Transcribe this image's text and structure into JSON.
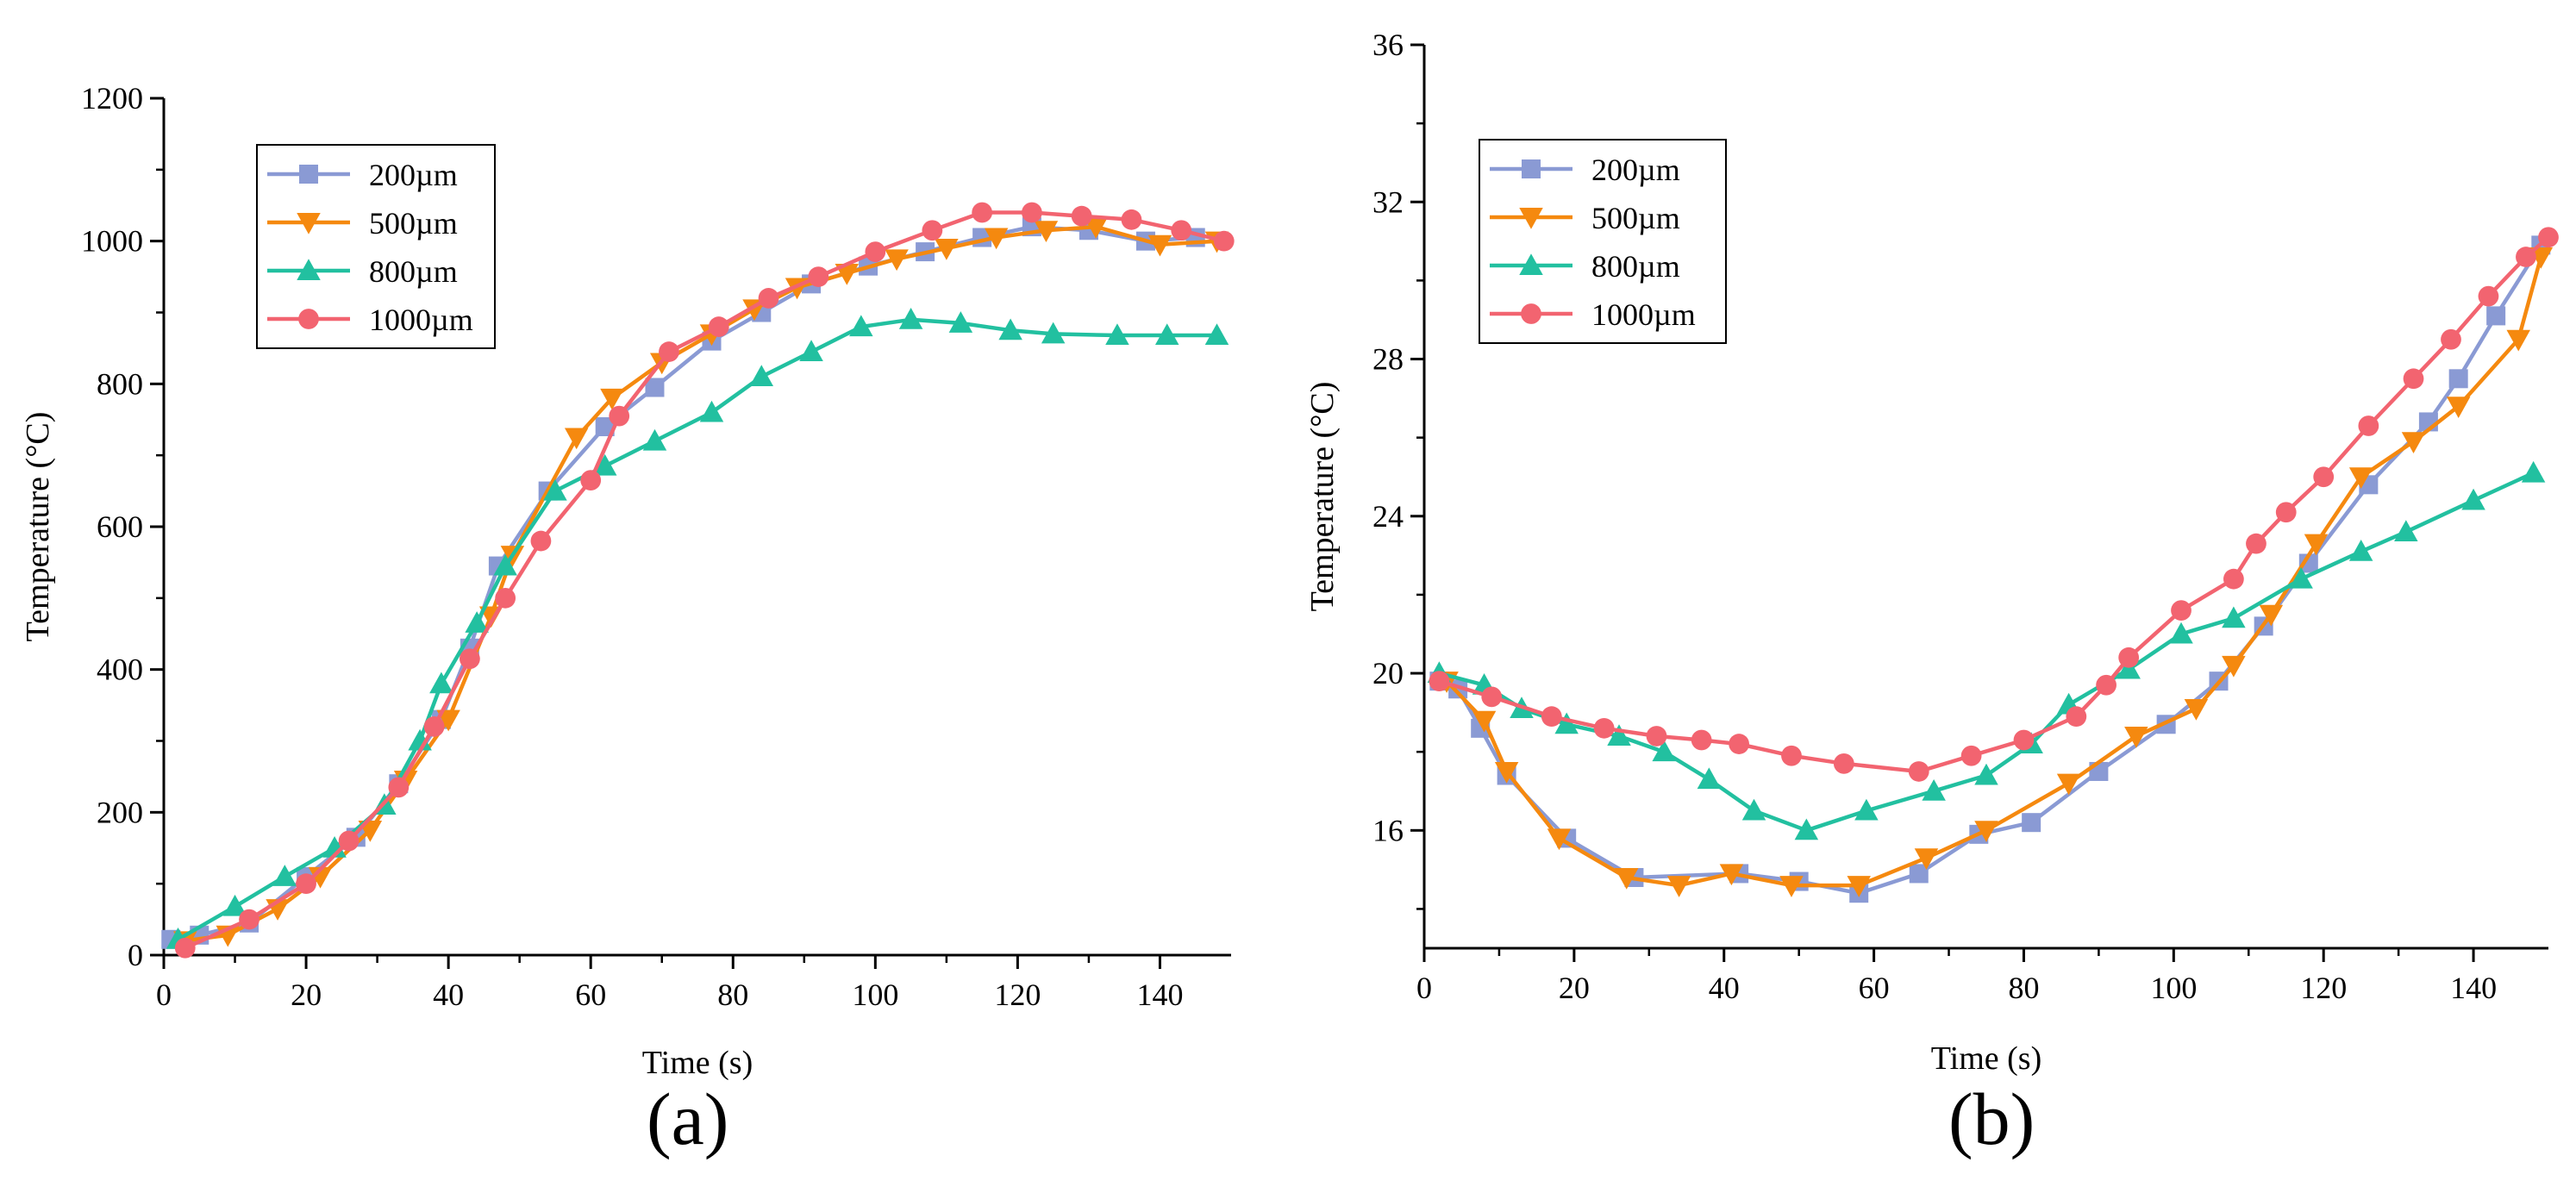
{
  "chart_data": [
    {
      "type": "line",
      "panel": "(a)",
      "title": "",
      "xlabel": "Time (s)",
      "ylabel": "Temperature (°C)",
      "xlim": [
        0,
        150
      ],
      "ylim": [
        0,
        1200
      ],
      "xticks": [
        0,
        20,
        40,
        60,
        80,
        100,
        120,
        140
      ],
      "yticks": [
        0,
        200,
        400,
        600,
        800,
        1000,
        1200
      ],
      "legend_position": "top-left",
      "series": [
        {
          "name": "200µm",
          "color": "#8a9ad4",
          "marker": "square",
          "x": [
            1,
            5,
            12,
            20,
            27,
            33,
            39,
            43,
            47,
            54,
            62,
            69,
            77,
            84,
            91,
            99,
            107,
            115,
            122,
            130,
            138,
            145
          ],
          "y": [
            22,
            28,
            45,
            110,
            165,
            240,
            330,
            430,
            545,
            650,
            740,
            795,
            860,
            900,
            940,
            965,
            985,
            1005,
            1020,
            1015,
            1000,
            1005
          ]
        },
        {
          "name": "500µm",
          "color": "#f5890f",
          "marker": "triangle-down",
          "x": [
            3,
            9,
            16,
            22,
            29,
            34,
            40,
            46,
            49,
            58,
            63,
            70,
            77,
            83,
            89,
            96,
            103,
            110,
            117,
            124,
            131,
            140,
            148
          ],
          "y": [
            20,
            28,
            65,
            110,
            175,
            245,
            330,
            475,
            560,
            725,
            780,
            830,
            870,
            905,
            935,
            955,
            975,
            990,
            1005,
            1015,
            1020,
            995,
            1000
          ]
        },
        {
          "name": "800µm",
          "color": "#22c0a0",
          "marker": "triangle-up",
          "x": [
            2,
            10,
            17,
            24,
            31,
            36,
            39,
            44,
            48,
            55,
            62,
            69,
            77,
            84,
            91,
            98,
            105,
            112,
            119,
            125,
            134,
            141,
            148
          ],
          "y": [
            22,
            68,
            110,
            150,
            210,
            300,
            380,
            465,
            545,
            650,
            685,
            720,
            760,
            810,
            845,
            880,
            890,
            885,
            875,
            870,
            868,
            868,
            868
          ]
        },
        {
          "name": "1000µm",
          "color": "#f26470",
          "marker": "circle",
          "x": [
            3,
            12,
            20,
            26,
            33,
            38,
            43,
            48,
            53,
            60,
            64,
            71,
            78,
            85,
            92,
            100,
            108,
            115,
            122,
            129,
            136,
            143,
            149
          ],
          "y": [
            10,
            50,
            100,
            160,
            235,
            320,
            415,
            500,
            580,
            665,
            755,
            845,
            880,
            920,
            950,
            985,
            1015,
            1040,
            1040,
            1035,
            1030,
            1015,
            1000
          ]
        }
      ]
    },
    {
      "type": "line",
      "panel": "(b)",
      "title": "",
      "xlabel": "Time (s)",
      "ylabel": "Temperature (°C)",
      "xlim": [
        0,
        150
      ],
      "ylim": [
        13,
        36
      ],
      "xticks": [
        0,
        20,
        40,
        60,
        80,
        100,
        120,
        140
      ],
      "yticks": [
        16,
        20,
        24,
        28,
        32,
        36
      ],
      "legend_position": "top-left",
      "series": [
        {
          "name": "200µm",
          "color": "#8a9ad4",
          "marker": "square",
          "x": [
            2,
            4.5,
            7.5,
            11,
            19,
            28,
            42,
            50,
            58,
            66,
            74,
            81,
            90,
            99,
            106,
            112,
            118,
            126,
            134,
            138,
            143,
            149
          ],
          "y": [
            19.8,
            19.6,
            18.6,
            17.4,
            15.8,
            14.8,
            14.9,
            14.7,
            14.4,
            14.9,
            15.9,
            16.2,
            17.5,
            18.7,
            19.8,
            21.2,
            22.8,
            24.8,
            26.4,
            27.5,
            29.1,
            30.9
          ]
        },
        {
          "name": "500µm",
          "color": "#f5890f",
          "marker": "triangle-down",
          "x": [
            3,
            8,
            11,
            18,
            27,
            34,
            41,
            49,
            58,
            67,
            75,
            86,
            95,
            103,
            108,
            113,
            119,
            125,
            132,
            138,
            146,
            149
          ],
          "y": [
            19.8,
            18.8,
            17.5,
            15.8,
            14.8,
            14.6,
            14.9,
            14.6,
            14.6,
            15.3,
            16.0,
            17.2,
            18.4,
            19.1,
            20.2,
            21.5,
            23.3,
            25.0,
            25.9,
            26.8,
            28.5,
            30.6
          ]
        },
        {
          "name": "800µm",
          "color": "#22c0a0",
          "marker": "triangle-up",
          "x": [
            2,
            8,
            13,
            19,
            26,
            32,
            38,
            44,
            51,
            59,
            68,
            75,
            81,
            86,
            94,
            101,
            108,
            117,
            125,
            131,
            140,
            148
          ],
          "y": [
            20.0,
            19.7,
            19.1,
            18.7,
            18.4,
            18.0,
            17.3,
            16.5,
            16.0,
            16.5,
            17.0,
            17.4,
            18.2,
            19.2,
            20.1,
            21.0,
            21.4,
            22.4,
            23.1,
            23.6,
            24.4,
            25.1
          ]
        },
        {
          "name": "1000µm",
          "color": "#f26470",
          "marker": "circle",
          "x": [
            2,
            9,
            17,
            24,
            31,
            37,
            42,
            49,
            56,
            66,
            73,
            80,
            87,
            91,
            94,
            101,
            108,
            111,
            115,
            120,
            126,
            132,
            137,
            142,
            147,
            150
          ],
          "y": [
            19.8,
            19.4,
            18.9,
            18.6,
            18.4,
            18.3,
            18.2,
            17.9,
            17.7,
            17.5,
            17.9,
            18.3,
            18.9,
            19.7,
            20.4,
            21.6,
            22.4,
            23.3,
            24.1,
            25.0,
            26.3,
            27.5,
            28.5,
            29.6,
            30.6,
            31.1
          ]
        }
      ]
    }
  ],
  "panels": {
    "a": "(a)",
    "b": "(b)"
  }
}
